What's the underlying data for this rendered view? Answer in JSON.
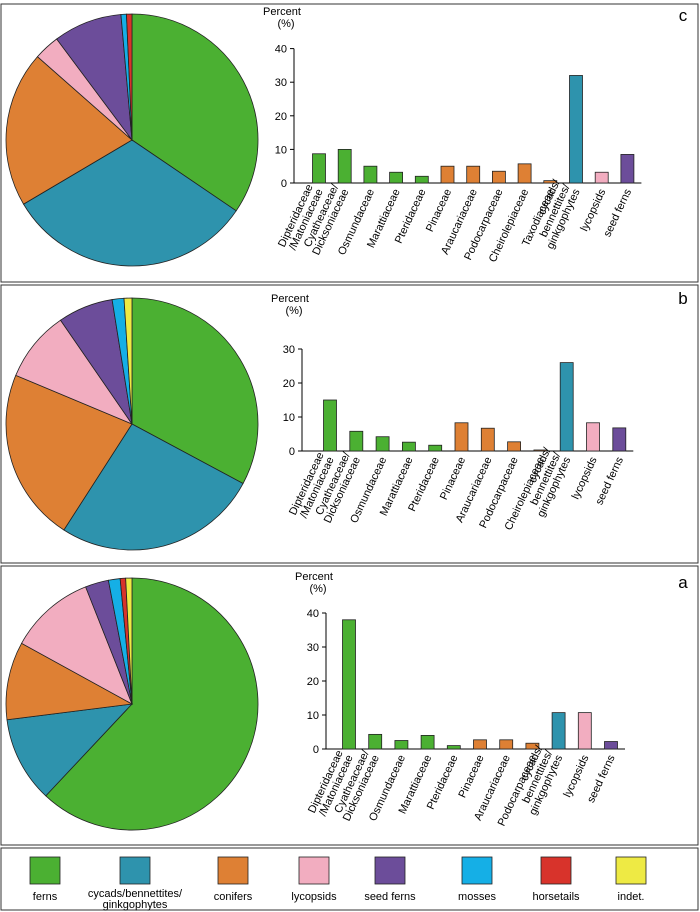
{
  "colors": {
    "ferns": "#4bb032",
    "cycads": "#2e93ad",
    "conifers": "#de8034",
    "lycopsids": "#f2adc0",
    "seed_ferns": "#6c4d9a",
    "mosses": "#15afe6",
    "horsetails": "#d8332b",
    "indet": "#eeea44"
  },
  "legend": [
    {
      "key": "ferns",
      "lines": [
        "ferns"
      ]
    },
    {
      "key": "cycads",
      "lines": [
        "cycads/bennettites/",
        "ginkgophytes"
      ]
    },
    {
      "key": "conifers",
      "lines": [
        "conifers"
      ]
    },
    {
      "key": "lycopsids",
      "lines": [
        "lycopsids"
      ]
    },
    {
      "key": "seed_ferns",
      "lines": [
        "seed ferns"
      ]
    },
    {
      "key": "mosses",
      "lines": [
        "mosses"
      ]
    },
    {
      "key": "horsetails",
      "lines": [
        "horsetails"
      ]
    },
    {
      "key": "indet",
      "lines": [
        "indet."
      ]
    }
  ],
  "chart_data": [
    {
      "panel": "c",
      "type": "bar",
      "ylabel": [
        "Percent",
        "(%)"
      ],
      "ylim": [
        0,
        40
      ],
      "yticks": [
        0,
        10,
        20,
        30,
        40
      ],
      "categories": [
        {
          "lines": [
            "Dipteridaceae",
            "/Matoniaceae"
          ],
          "value": 8.7,
          "group": "ferns"
        },
        {
          "lines": [
            "Cyatheaceae/",
            "Dicksoniaceae"
          ],
          "value": 10.0,
          "group": "ferns"
        },
        {
          "lines": [
            "Osmundaceae"
          ],
          "value": 5.0,
          "group": "ferns"
        },
        {
          "lines": [
            "Marattiaceae"
          ],
          "value": 3.2,
          "group": "ferns"
        },
        {
          "lines": [
            "Pteridaceae"
          ],
          "value": 2.0,
          "group": "ferns"
        },
        {
          "lines": [
            "Pinaceae"
          ],
          "value": 5.0,
          "group": "conifers"
        },
        {
          "lines": [
            "Araucariaceae"
          ],
          "value": 5.0,
          "group": "conifers"
        },
        {
          "lines": [
            "Podocarpaceae"
          ],
          "value": 3.5,
          "group": "conifers"
        },
        {
          "lines": [
            "Cheirolepiaceae"
          ],
          "value": 5.7,
          "group": "conifers"
        },
        {
          "lines": [
            "Taxodiaceae"
          ],
          "value": 0.7,
          "group": "conifers"
        },
        {
          "lines": [
            "cycads/",
            "bennettites/",
            "ginkgophytes"
          ],
          "value": 32.0,
          "group": "cycads"
        },
        {
          "lines": [
            "lycopsids"
          ],
          "value": 3.2,
          "group": "lycopsids"
        },
        {
          "lines": [
            "seed ferns"
          ],
          "value": 8.5,
          "group": "seed_ferns"
        }
      ],
      "pie": [
        {
          "group": "ferns",
          "value": 34.5
        },
        {
          "group": "cycads",
          "value": 32.0
        },
        {
          "group": "conifers",
          "value": 20.0
        },
        {
          "group": "lycopsids",
          "value": 3.3
        },
        {
          "group": "seed_ferns",
          "value": 8.8
        },
        {
          "group": "mosses",
          "value": 0.7
        },
        {
          "group": "horsetails",
          "value": 0.7
        }
      ]
    },
    {
      "panel": "b",
      "type": "bar",
      "ylabel": [
        "Percent",
        "(%)"
      ],
      "ylim": [
        0,
        30
      ],
      "yticks": [
        0,
        10,
        20,
        30
      ],
      "categories": [
        {
          "lines": [
            "Dipteridaceae",
            "/Matoniaceae"
          ],
          "value": 15.0,
          "group": "ferns"
        },
        {
          "lines": [
            "Cyatheaceae/",
            "Dicksoniaceae"
          ],
          "value": 5.8,
          "group": "ferns"
        },
        {
          "lines": [
            "Osmundaceae"
          ],
          "value": 4.2,
          "group": "ferns"
        },
        {
          "lines": [
            "Marattiaceae"
          ],
          "value": 2.6,
          "group": "ferns"
        },
        {
          "lines": [
            "Pteridaceae"
          ],
          "value": 1.7,
          "group": "ferns"
        },
        {
          "lines": [
            "Pinaceae"
          ],
          "value": 8.3,
          "group": "conifers"
        },
        {
          "lines": [
            "Araucariaceae"
          ],
          "value": 6.7,
          "group": "conifers"
        },
        {
          "lines": [
            "Podocarpaceae"
          ],
          "value": 2.7,
          "group": "conifers"
        },
        {
          "lines": [
            "Cheirolepiaceae"
          ],
          "value": 0.3,
          "group": "conifers"
        },
        {
          "lines": [
            "cycads/",
            "bennettites/",
            "ginkgophytes"
          ],
          "value": 26.0,
          "group": "cycads"
        },
        {
          "lines": [
            "lycopsids"
          ],
          "value": 8.3,
          "group": "lycopsids"
        },
        {
          "lines": [
            "seed ferns"
          ],
          "value": 6.8,
          "group": "seed_ferns"
        }
      ],
      "pie": [
        {
          "group": "ferns",
          "value": 32.5
        },
        {
          "group": "cycads",
          "value": 26.0
        },
        {
          "group": "conifers",
          "value": 22.0
        },
        {
          "group": "lycopsids",
          "value": 9.0
        },
        {
          "group": "seed_ferns",
          "value": 7.0
        },
        {
          "group": "mosses",
          "value": 1.5
        },
        {
          "group": "indet",
          "value": 1.0
        }
      ]
    },
    {
      "panel": "a",
      "type": "bar",
      "ylabel": [
        "Percent",
        "(%)"
      ],
      "ylim": [
        0,
        40
      ],
      "yticks": [
        0,
        10,
        20,
        30,
        40
      ],
      "categories": [
        {
          "lines": [
            "Dipteridaceae",
            "/Matoniaceae"
          ],
          "value": 38.0,
          "group": "ferns"
        },
        {
          "lines": [
            "Cyatheaceae/",
            "Dicksoniaceae"
          ],
          "value": 4.3,
          "group": "ferns"
        },
        {
          "lines": [
            "Osmundaceae"
          ],
          "value": 2.5,
          "group": "ferns"
        },
        {
          "lines": [
            "Marattiaceae"
          ],
          "value": 4.0,
          "group": "ferns"
        },
        {
          "lines": [
            "Pteridaceae"
          ],
          "value": 1.0,
          "group": "ferns"
        },
        {
          "lines": [
            "Pinaceae"
          ],
          "value": 2.7,
          "group": "conifers"
        },
        {
          "lines": [
            "Araucariaceae"
          ],
          "value": 2.7,
          "group": "conifers"
        },
        {
          "lines": [
            "Podocarpaceae"
          ],
          "value": 1.7,
          "group": "conifers"
        },
        {
          "lines": [
            "cycads/",
            "bennettites/",
            "ginkgophytes"
          ],
          "value": 10.7,
          "group": "cycads"
        },
        {
          "lines": [
            "lycopsids"
          ],
          "value": 10.7,
          "group": "lycopsids"
        },
        {
          "lines": [
            "seed ferns"
          ],
          "value": 2.2,
          "group": "seed_ferns"
        }
      ],
      "pie": [
        {
          "group": "ferns",
          "value": 62.0
        },
        {
          "group": "cycads",
          "value": 11.0
        },
        {
          "group": "conifers",
          "value": 10.0
        },
        {
          "group": "lycopsids",
          "value": 11.0
        },
        {
          "group": "seed_ferns",
          "value": 3.0
        },
        {
          "group": "mosses",
          "value": 1.5
        },
        {
          "group": "horsetails",
          "value": 0.7
        },
        {
          "group": "indet",
          "value": 0.8
        }
      ]
    }
  ]
}
